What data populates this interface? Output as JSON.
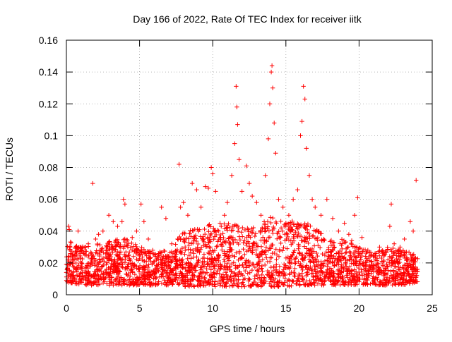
{
  "chart_data": {
    "type": "scatter",
    "title": "Day 166 of 2022, Rate Of TEC Index for receiver iitk",
    "xlabel": "GPS time / hours",
    "ylabel": "ROTI / TECUs",
    "xlim": [
      0,
      25
    ],
    "ylim": [
      0,
      0.16
    ],
    "xticks": [
      0,
      5,
      10,
      15,
      20,
      25
    ],
    "xtick_labels": [
      "0",
      "5",
      "10",
      "15",
      "20",
      "25"
    ],
    "yticks": [
      0,
      0.02,
      0.04,
      0.06,
      0.08,
      0.1,
      0.12,
      0.14,
      0.16
    ],
    "ytick_labels": [
      "0",
      "0.02",
      "0.04",
      "0.06",
      "0.08",
      "0.1",
      "0.12",
      "0.14",
      "0.16"
    ],
    "grid": true,
    "marker": "+",
    "series": [
      {
        "name": "ROTI",
        "color": "#ff0000",
        "points": [
          [
            0.0,
            0.014
          ],
          [
            0.1,
            0.01
          ],
          [
            0.15,
            0.043
          ],
          [
            0.2,
            0.041
          ],
          [
            0.25,
            0.03
          ],
          [
            0.4,
            0.02
          ],
          [
            0.6,
            0.024
          ],
          [
            0.8,
            0.04
          ],
          [
            1.0,
            0.03
          ],
          [
            1.2,
            0.026
          ],
          [
            1.5,
            0.032
          ],
          [
            1.7,
            0.02
          ],
          [
            1.8,
            0.07
          ],
          [
            2.0,
            0.035
          ],
          [
            2.2,
            0.038
          ],
          [
            2.5,
            0.04
          ],
          [
            2.9,
            0.05
          ],
          [
            3.2,
            0.046
          ],
          [
            3.5,
            0.043
          ],
          [
            3.8,
            0.046
          ],
          [
            3.9,
            0.06
          ],
          [
            4.0,
            0.057
          ],
          [
            4.2,
            0.03
          ],
          [
            4.5,
            0.036
          ],
          [
            4.8,
            0.04
          ],
          [
            5.1,
            0.057
          ],
          [
            5.3,
            0.046
          ],
          [
            5.6,
            0.035
          ],
          [
            5.9,
            0.028
          ],
          [
            6.3,
            0.025
          ],
          [
            6.5,
            0.055
          ],
          [
            6.8,
            0.048
          ],
          [
            7.2,
            0.032
          ],
          [
            7.6,
            0.035
          ],
          [
            7.7,
            0.082
          ],
          [
            7.8,
            0.055
          ],
          [
            8.0,
            0.058
          ],
          [
            8.3,
            0.05
          ],
          [
            8.6,
            0.07
          ],
          [
            8.9,
            0.066
          ],
          [
            9.2,
            0.055
          ],
          [
            9.5,
            0.068
          ],
          [
            9.7,
            0.067
          ],
          [
            9.9,
            0.08
          ],
          [
            10.0,
            0.076
          ],
          [
            10.2,
            0.065
          ],
          [
            10.5,
            0.045
          ],
          [
            10.8,
            0.05
          ],
          [
            11.0,
            0.058
          ],
          [
            11.3,
            0.075
          ],
          [
            11.5,
            0.095
          ],
          [
            11.6,
            0.131
          ],
          [
            11.65,
            0.118
          ],
          [
            11.7,
            0.107
          ],
          [
            11.8,
            0.085
          ],
          [
            12.0,
            0.065
          ],
          [
            12.3,
            0.081
          ],
          [
            12.5,
            0.07
          ],
          [
            12.7,
            0.062
          ],
          [
            13.0,
            0.058
          ],
          [
            13.3,
            0.05
          ],
          [
            13.6,
            0.075
          ],
          [
            13.8,
            0.098
          ],
          [
            13.9,
            0.12
          ],
          [
            14.0,
            0.14
          ],
          [
            14.05,
            0.144
          ],
          [
            14.1,
            0.13
          ],
          [
            14.2,
            0.108
          ],
          [
            14.3,
            0.089
          ],
          [
            14.5,
            0.06
          ],
          [
            14.8,
            0.055
          ],
          [
            15.0,
            0.045
          ],
          [
            15.2,
            0.05
          ],
          [
            15.5,
            0.06
          ],
          [
            15.8,
            0.066
          ],
          [
            16.0,
            0.1
          ],
          [
            16.1,
            0.109
          ],
          [
            16.2,
            0.131
          ],
          [
            16.3,
            0.123
          ],
          [
            16.4,
            0.092
          ],
          [
            16.6,
            0.075
          ],
          [
            16.8,
            0.06
          ],
          [
            17.0,
            0.055
          ],
          [
            17.4,
            0.05
          ],
          [
            17.8,
            0.06
          ],
          [
            18.2,
            0.048
          ],
          [
            18.6,
            0.04
          ],
          [
            19.0,
            0.045
          ],
          [
            19.3,
            0.038
          ],
          [
            19.5,
            0.034
          ],
          [
            19.7,
            0.05
          ],
          [
            19.9,
            0.061
          ],
          [
            20.2,
            0.036
          ],
          [
            20.6,
            0.028
          ],
          [
            21.0,
            0.025
          ],
          [
            21.4,
            0.03
          ],
          [
            21.8,
            0.027
          ],
          [
            22.1,
            0.043
          ],
          [
            22.2,
            0.057
          ],
          [
            22.4,
            0.032
          ],
          [
            22.8,
            0.03
          ],
          [
            23.1,
            0.035
          ],
          [
            23.5,
            0.046
          ],
          [
            23.7,
            0.04
          ],
          [
            23.9,
            0.072
          ],
          [
            24.0,
            0.016
          ]
        ]
      }
    ],
    "envelope": {
      "description": "dense band of ROTI values",
      "hours": [
        0,
        1,
        2,
        3,
        4,
        5,
        6,
        7,
        8,
        9,
        10,
        11,
        12,
        13,
        14,
        15,
        16,
        17,
        18,
        19,
        20,
        21,
        22,
        23,
        24
      ],
      "upper": [
        0.035,
        0.03,
        0.032,
        0.034,
        0.036,
        0.03,
        0.028,
        0.028,
        0.04,
        0.042,
        0.045,
        0.045,
        0.044,
        0.042,
        0.05,
        0.045,
        0.048,
        0.042,
        0.035,
        0.035,
        0.03,
        0.026,
        0.03,
        0.028,
        0.025
      ],
      "lower": [
        0.008,
        0.006,
        0.006,
        0.006,
        0.006,
        0.006,
        0.006,
        0.006,
        0.005,
        0.005,
        0.005,
        0.005,
        0.005,
        0.005,
        0.005,
        0.005,
        0.006,
        0.006,
        0.006,
        0.006,
        0.006,
        0.006,
        0.006,
        0.006,
        0.008
      ]
    }
  }
}
